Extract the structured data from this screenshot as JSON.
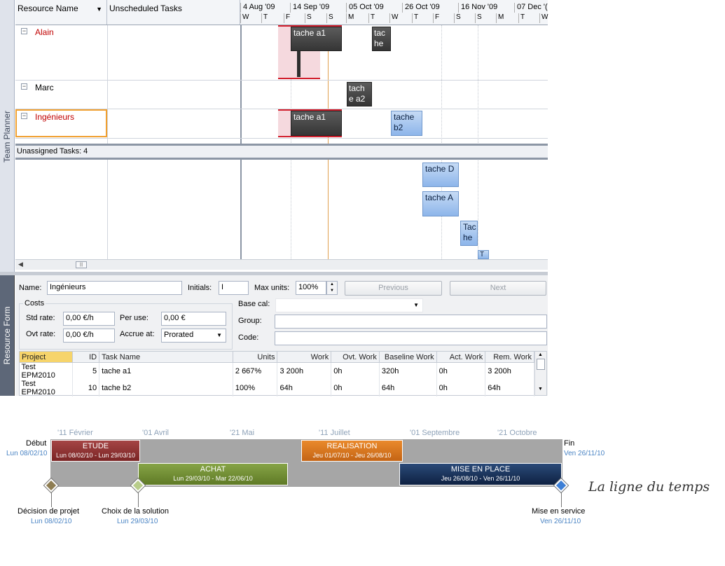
{
  "team_planner": {
    "side_label": "Team Planner",
    "columns": {
      "resource_name": "Resource Name",
      "unscheduled": "Unscheduled Tasks"
    },
    "timescale_top": [
      "4 Aug '09",
      "14 Sep '09",
      "05 Oct '09",
      "26 Oct '09",
      "16 Nov '09",
      "07 Dec '("
    ],
    "timescale_bottom": [
      "W",
      "T",
      "F",
      "S",
      "S",
      "M",
      "T",
      "W",
      "T",
      "F",
      "S",
      "S",
      "M",
      "T",
      "W"
    ],
    "resources": [
      {
        "name": "Alain",
        "color": "#c00000"
      },
      {
        "name": "Marc",
        "color": "#000000"
      },
      {
        "name": "Ingénieurs",
        "color": "#c00000"
      }
    ],
    "bars": {
      "alain_1": "tache a1",
      "alain_2a": "tac",
      "alain_2b": "he",
      "marc_1a": "tach",
      "marc_1b": "e a2",
      "ing_1": "tache a1",
      "ing_2a": "tache",
      "ing_2b": "b2"
    },
    "unassigned_label": "Unassigned Tasks: 4",
    "unassigned_bars": {
      "d": "tache D",
      "a": "tache A",
      "he_a": "Tac",
      "he_b": "he",
      "t": "T"
    }
  },
  "resource_form": {
    "side_label": "Resource Form",
    "name_label": "Name:",
    "name_value": "Ingénieurs",
    "initials_label": "Initials:",
    "initials_value": "I",
    "max_units_label": "Max units:",
    "max_units_value": "100%",
    "previous": "Previous",
    "next": "Next",
    "costs_label": "Costs",
    "std_rate_label": "Std rate:",
    "std_rate_value": "0,00 €/h",
    "per_use_label": "Per use:",
    "per_use_value": "0,00 €",
    "ovt_rate_label": "Ovt rate:",
    "ovt_rate_value": "0,00 €/h",
    "accrue_label": "Accrue at:",
    "accrue_value": "Prorated",
    "base_cal_label": "Base cal:",
    "group_label": "Group:",
    "code_label": "Code:",
    "table": {
      "headers": [
        "Project",
        "ID",
        "Task Name",
        "Units",
        "Work",
        "Ovt. Work",
        "Baseline Work",
        "Act. Work",
        "Rem. Work"
      ],
      "rows": [
        [
          "Test EPM2010",
          "5",
          "tache a1",
          "2 667%",
          "3 200h",
          "0h",
          "320h",
          "0h",
          "3 200h"
        ],
        [
          "Test EPM2010",
          "10",
          "tache b2",
          "100%",
          "64h",
          "0h",
          "64h",
          "0h",
          "64h"
        ]
      ]
    }
  },
  "timeline": {
    "scale": [
      "'11 Février",
      "'01 Avril",
      "'21 Mai",
      "'11 Juillet",
      "'01 Septembre",
      "'21 Octobre"
    ],
    "start": {
      "label": "Début",
      "date": "Lun 08/02/10"
    },
    "end": {
      "label": "Fin",
      "date": "Ven 26/11/10"
    },
    "phases": [
      {
        "name": "ETUDE",
        "dates": "Lun 08/02/10 - Lun 29/03/10",
        "color": "#8b2d2d"
      },
      {
        "name": "ACHAT",
        "dates": "Lun 29/03/10 - Mar 22/06/10",
        "color": "#6e8a2e"
      },
      {
        "name": "REALISATION",
        "dates": "Jeu 01/07/10 - Jeu 26/08/10",
        "color": "#d0721a"
      },
      {
        "name": "MISE EN PLACE",
        "dates": "Jeu 26/08/10 - Ven 26/11/10",
        "color": "#13294b"
      }
    ],
    "milestones": [
      {
        "name": "Décision de projet",
        "date": "Lun 08/02/10"
      },
      {
        "name": "Choix de la solution",
        "date": "Lun 29/03/10"
      },
      {
        "name": "Mise en service",
        "date": "Ven 26/11/10"
      }
    ],
    "title": "La ligne du temps"
  }
}
